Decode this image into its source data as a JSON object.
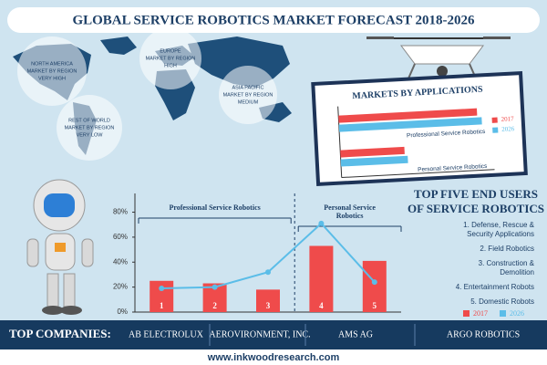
{
  "title": "GLOBAL SERVICE ROBOTICS MARKET FORECAST 2018-2026",
  "map_labels": [
    {
      "region": "NORTH AMERICA",
      "text": "MARKET BY REGION",
      "level": "VERY HIGH"
    },
    {
      "region": "EUROPE",
      "text": "MARKET BY REGION",
      "level": "HIGH"
    },
    {
      "region": "ASIA PACIFIC",
      "text": "MARKET BY REGION",
      "level": "MEDIUM"
    },
    {
      "region": "REST OF WORLD",
      "text": "MARKET BY REGION",
      "level": "VERY LOW"
    }
  ],
  "chart_data": [
    {
      "type": "hbar",
      "title": "MARKETS BY APPLICATIONS",
      "categories": [
        "Professional Service Robotics",
        "Personal Service Robotics"
      ],
      "series": [
        {
          "name": "2017",
          "color": "#ef4b4b",
          "values": [
            95,
            44
          ]
        },
        {
          "name": "2026",
          "color": "#5bbde8",
          "values": [
            98,
            46
          ]
        }
      ],
      "xlim": [
        0,
        100
      ]
    },
    {
      "type": "combo",
      "annotations": [
        [
          "Professional Service Robotics"
        ],
        [
          "Personal Service",
          "Robotics"
        ]
      ],
      "categories": [
        "1",
        "2",
        "3",
        "4",
        "5"
      ],
      "series": [
        {
          "name": "2017",
          "type": "bar",
          "color": "#ef4b4b",
          "values": [
            25,
            23,
            18,
            53,
            41
          ]
        },
        {
          "name": "2026",
          "type": "line",
          "color": "#5bbde8",
          "values": [
            19,
            20,
            32,
            71,
            24
          ]
        }
      ],
      "ylim": [
        0,
        95
      ],
      "yticks": [
        {
          "value": 0,
          "label": "0%"
        },
        {
          "value": 20,
          "label": "20%"
        },
        {
          "value": 40,
          "label": "40%"
        },
        {
          "value": 60,
          "label": "60%"
        },
        {
          "value": 80,
          "label": "80%"
        }
      ]
    }
  ],
  "end_users": {
    "title": [
      "TOP FIVE END USERS",
      "OF SERVICE ROBOTICS"
    ],
    "items": [
      [
        "1. Defense, Rescue &",
        "Security Applications"
      ],
      [
        "2. Field Robotics"
      ],
      [
        "3. Construction &",
        "Demolition"
      ],
      [
        "4. Entertainment Robots"
      ],
      [
        "5. Domestic Robots"
      ]
    ]
  },
  "companies": {
    "label": "TOP COMPANIES:",
    "names": [
      "AB ELECTROLUX",
      "AEROVIRONMENT, INC.",
      "AMS AG",
      "ARGO ROBOTICS"
    ]
  },
  "footer": "www.inkwoodresearch.com"
}
